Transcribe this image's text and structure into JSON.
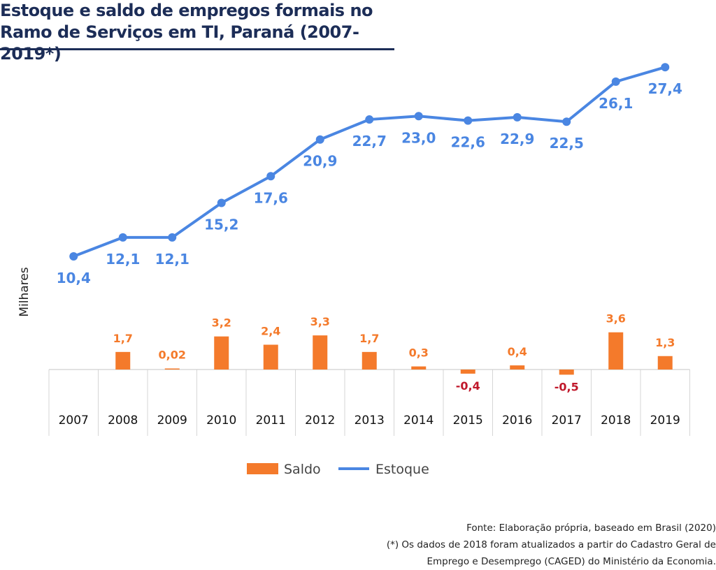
{
  "title": {
    "line1": "Estoque e saldo de empregos formais no",
    "line2": "Ramo de Serviços em TI, Paraná (2007-2019*)"
  },
  "chart_data": {
    "type": "line+bar",
    "categories": [
      "2007",
      "2008",
      "2009",
      "2010",
      "2011",
      "2012",
      "2013",
      "2014",
      "2015",
      "2016",
      "2017",
      "2018",
      "2019"
    ],
    "ylabel": "Milhares",
    "series": [
      {
        "name": "Estoque",
        "type": "line",
        "color": "#4a86e2",
        "values": [
          10.4,
          12.1,
          12.1,
          15.2,
          17.6,
          20.9,
          22.7,
          23.0,
          22.6,
          22.9,
          22.5,
          26.1,
          27.4
        ],
        "labels": [
          "10,4",
          "12,1",
          "12,1",
          "15,2",
          "17,6",
          "20,9",
          "22,7",
          "23,0",
          "22,6",
          "22,9",
          "22,5",
          "26,1",
          "27,4"
        ]
      },
      {
        "name": "Saldo",
        "type": "bar",
        "color": "#f47a2b",
        "negative_label_color": "#c0182b",
        "values": [
          null,
          1.7,
          0.02,
          3.2,
          2.4,
          3.3,
          1.7,
          0.3,
          -0.4,
          0.4,
          -0.5,
          3.6,
          1.3
        ],
        "labels": [
          "",
          "1,7",
          "0,02",
          "3,2",
          "2,4",
          "3,3",
          "1,7",
          "0,3",
          "-0,4",
          "0,4",
          "-0,5",
          "3,6",
          "1,3"
        ]
      }
    ],
    "legend": {
      "position": "bottom",
      "items": [
        "Saldo",
        "Estoque"
      ]
    }
  },
  "footer": {
    "source": "Fonte: Elaboração própria, baseado em Brasil (2020)",
    "note_line1": "(*) Os dados de 2018 foram atualizados a partir do Cadastro Geral de",
    "note_line2": "Emprego e Desemprego (CAGED) do Ministério da Economia."
  }
}
